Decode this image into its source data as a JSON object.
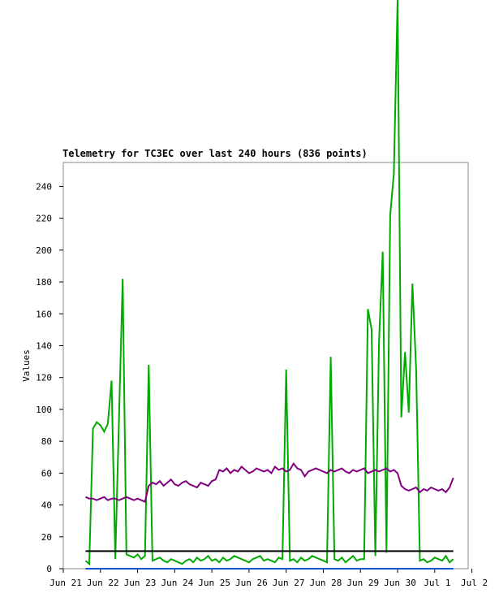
{
  "chart_data": {
    "type": "line",
    "title": "Telemetry for TC3EC over last 240 hours (836 points)",
    "y_label": "Values",
    "xlim": [
      0,
      10.9
    ],
    "ylim": [
      0,
      255
    ],
    "xticks": [
      {
        "value": 0,
        "label": "Jun 21"
      },
      {
        "value": 1,
        "label": "Jun 22"
      },
      {
        "value": 2,
        "label": "Jun 23"
      },
      {
        "value": 3,
        "label": "Jun 24"
      },
      {
        "value": 4,
        "label": "Jun 25"
      },
      {
        "value": 5,
        "label": "Jun 26"
      },
      {
        "value": 6,
        "label": "Jun 27"
      },
      {
        "value": 7,
        "label": "Jun 28"
      },
      {
        "value": 8,
        "label": "Jun 29"
      },
      {
        "value": 9,
        "label": "Jun 30"
      },
      {
        "value": 10,
        "label": "Jul 1"
      },
      {
        "value": 11,
        "label": "Jul 2"
      }
    ],
    "yticks": [
      0,
      20,
      40,
      60,
      80,
      100,
      120,
      140,
      160,
      180,
      200,
      220,
      240
    ],
    "grid": false,
    "series": [
      {
        "color": "#00aa00",
        "x": [
          0.6,
          0.7,
          0.8,
          0.9,
          1.0,
          1.1,
          1.2,
          1.3,
          1.4,
          1.5,
          1.6,
          1.7,
          1.8,
          1.9,
          2.0,
          2.1,
          2.2,
          2.3,
          2.4,
          2.5,
          2.6,
          2.7,
          2.8,
          2.9,
          3.0,
          3.1,
          3.2,
          3.3,
          3.4,
          3.5,
          3.6,
          3.7,
          3.8,
          3.9,
          4.0,
          4.1,
          4.2,
          4.3,
          4.4,
          4.5,
          4.6,
          4.7,
          4.8,
          4.9,
          5.0,
          5.1,
          5.2,
          5.3,
          5.4,
          5.5,
          5.6,
          5.7,
          5.8,
          5.9,
          6.0,
          6.1,
          6.2,
          6.3,
          6.4,
          6.5,
          6.6,
          6.7,
          6.8,
          6.9,
          7.0,
          7.1,
          7.2,
          7.3,
          7.4,
          7.5,
          7.6,
          7.7,
          7.8,
          7.9,
          8.0,
          8.1,
          8.2,
          8.3,
          8.4,
          8.5,
          8.6,
          8.7,
          8.8,
          8.9,
          9.0,
          9.1,
          9.2,
          9.3,
          9.4,
          9.5,
          9.6,
          9.7,
          9.8,
          9.9,
          10.0,
          10.1,
          10.2,
          10.3,
          10.4,
          10.5
        ],
        "values": [
          5,
          3,
          88,
          92,
          90,
          86,
          91,
          118,
          6,
          95,
          182,
          9,
          8,
          7,
          9,
          6,
          8,
          128,
          5,
          6,
          7,
          5,
          4,
          6,
          5,
          4,
          3,
          5,
          6,
          4,
          7,
          5,
          6,
          8,
          5,
          6,
          4,
          7,
          5,
          6,
          8,
          7,
          6,
          5,
          4,
          6,
          7,
          8,
          5,
          6,
          5,
          4,
          7,
          6,
          125,
          5,
          6,
          4,
          7,
          5,
          6,
          8,
          7,
          6,
          5,
          4,
          133,
          6,
          5,
          7,
          4,
          6,
          8,
          5,
          6,
          6,
          163,
          150,
          8,
          142,
          199,
          10,
          222,
          248,
          357,
          95,
          136,
          98,
          179,
          125,
          5,
          6,
          4,
          5,
          7,
          6,
          5,
          8,
          4,
          6
        ]
      },
      {
        "color": "#800080",
        "x": [
          0.6,
          0.7,
          0.8,
          0.9,
          1.0,
          1.1,
          1.2,
          1.3,
          1.4,
          1.5,
          1.6,
          1.7,
          1.8,
          1.9,
          2.0,
          2.1,
          2.2,
          2.3,
          2.4,
          2.5,
          2.6,
          2.7,
          2.8,
          2.9,
          3.0,
          3.1,
          3.2,
          3.3,
          3.4,
          3.5,
          3.6,
          3.7,
          3.8,
          3.9,
          4.0,
          4.1,
          4.2,
          4.3,
          4.4,
          4.5,
          4.6,
          4.7,
          4.8,
          4.9,
          5.0,
          5.1,
          5.2,
          5.3,
          5.4,
          5.5,
          5.6,
          5.7,
          5.8,
          5.9,
          6.0,
          6.1,
          6.2,
          6.3,
          6.4,
          6.5,
          6.6,
          6.7,
          6.8,
          6.9,
          7.0,
          7.1,
          7.2,
          7.3,
          7.4,
          7.5,
          7.6,
          7.7,
          7.8,
          7.9,
          8.0,
          8.1,
          8.2,
          8.3,
          8.4,
          8.5,
          8.6,
          8.7,
          8.8,
          8.9,
          9.0,
          9.1,
          9.2,
          9.3,
          9.4,
          9.5,
          9.6,
          9.7,
          9.8,
          9.9,
          10.0,
          10.1,
          10.2,
          10.3,
          10.4,
          10.5
        ],
        "values": [
          45,
          44,
          44,
          43,
          44,
          45,
          43,
          44,
          44,
          43,
          44,
          45,
          44,
          43,
          44,
          43,
          42,
          52,
          54,
          53,
          55,
          52,
          54,
          56,
          53,
          52,
          54,
          55,
          53,
          52,
          51,
          54,
          53,
          52,
          55,
          56,
          62,
          61,
          63,
          60,
          62,
          61,
          64,
          62,
          60,
          61,
          63,
          62,
          61,
          62,
          60,
          64,
          62,
          63,
          61,
          62,
          66,
          63,
          62,
          58,
          61,
          62,
          63,
          62,
          61,
          60,
          62,
          61,
          62,
          63,
          61,
          60,
          62,
          61,
          62,
          63,
          60,
          61,
          62,
          61,
          62,
          63,
          61,
          62,
          60,
          52,
          50,
          49,
          50,
          51,
          48,
          50,
          49,
          51,
          50,
          49,
          50,
          48,
          51,
          57
        ]
      },
      {
        "color": "#000000",
        "x": [
          0.6,
          10.5
        ],
        "values": [
          11,
          11
        ]
      },
      {
        "color": "#0055cc",
        "x": [
          0.6,
          10.5
        ],
        "values": [
          0,
          0
        ]
      }
    ]
  }
}
